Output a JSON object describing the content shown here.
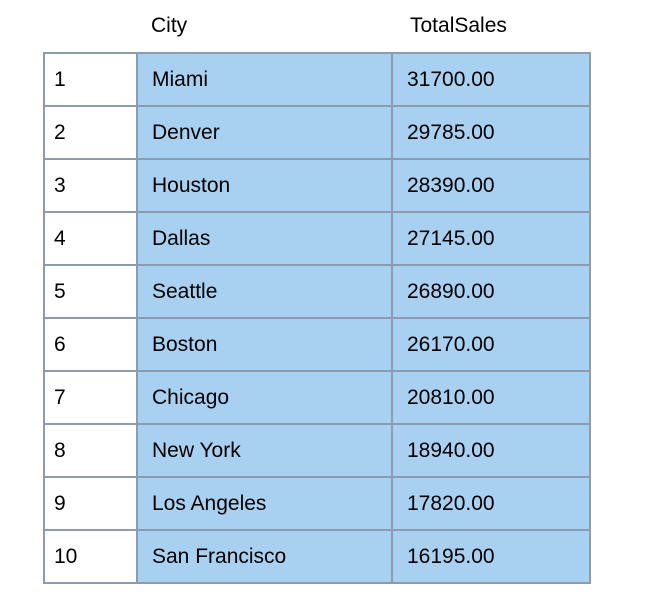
{
  "table": {
    "columns": [
      "",
      "City",
      "TotalSales"
    ],
    "rows": [
      {
        "index": "1",
        "city": "Miami",
        "total_sales": "31700.00"
      },
      {
        "index": "2",
        "city": "Denver",
        "total_sales": "29785.00"
      },
      {
        "index": "3",
        "city": "Houston",
        "total_sales": "28390.00"
      },
      {
        "index": "4",
        "city": "Dallas",
        "total_sales": "27145.00"
      },
      {
        "index": "5",
        "city": "Seattle",
        "total_sales": "26890.00"
      },
      {
        "index": "6",
        "city": "Boston",
        "total_sales": "26170.00"
      },
      {
        "index": "7",
        "city": "Chicago",
        "total_sales": "20810.00"
      },
      {
        "index": "8",
        "city": "New York",
        "total_sales": "18940.00"
      },
      {
        "index": "9",
        "city": "Los Angeles",
        "total_sales": "17820.00"
      },
      {
        "index": "10",
        "city": "San Francisco",
        "total_sales": "16195.00"
      }
    ]
  },
  "colors": {
    "cell_fill": "#a8d0f0",
    "grid_line": "#8d9bb1",
    "index_fill": "#ffffff"
  }
}
